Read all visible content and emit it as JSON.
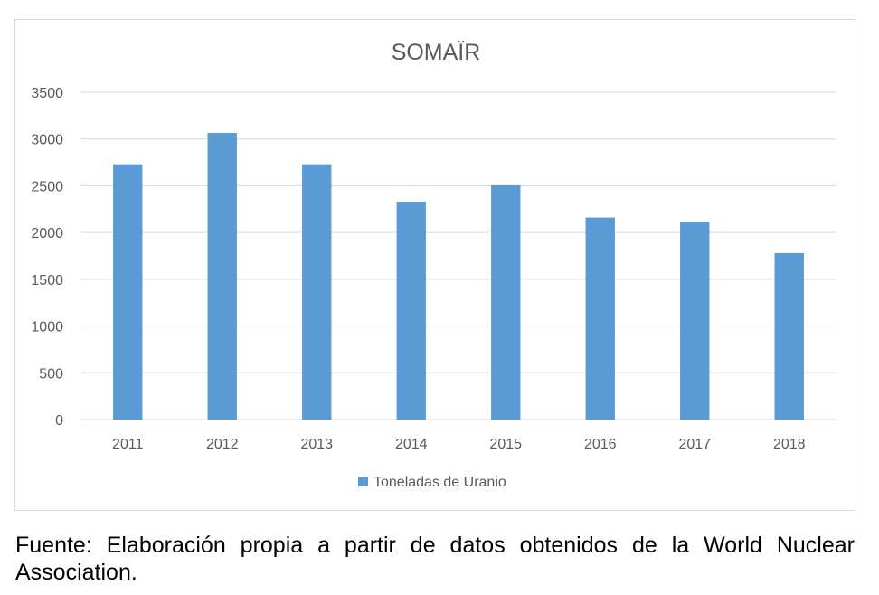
{
  "chart_data": {
    "type": "bar",
    "title": "SOMAÏR",
    "categories": [
      "2011",
      "2012",
      "2013",
      "2014",
      "2015",
      "2016",
      "2017",
      "2018"
    ],
    "series": [
      {
        "name": "Toneladas de Uranio",
        "values": [
          2730,
          3065,
          2730,
          2330,
          2505,
          2160,
          2110,
          1780
        ],
        "color": "#5b9bd5"
      }
    ],
    "ylim": [
      0,
      3500
    ],
    "yticks": [
      0,
      500,
      1000,
      1500,
      2000,
      2500,
      3000,
      3500
    ],
    "ytick_labels": [
      "0",
      "500",
      "1000",
      "1500",
      "2000",
      "2500",
      "3000",
      "3500"
    ],
    "grid": true,
    "legend_position": "bottom"
  },
  "caption": "Fuente: Elaboración propia a partir de datos obtenidos de la World Nuclear Association."
}
